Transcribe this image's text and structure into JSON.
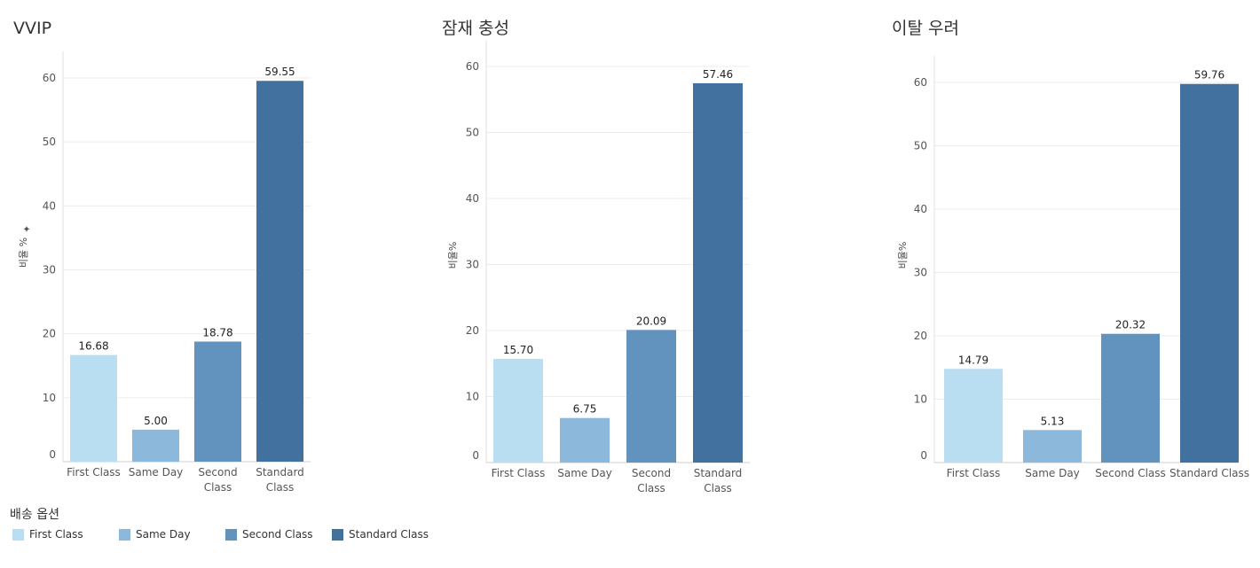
{
  "chart_data": [
    {
      "type": "bar",
      "title": "VVIP",
      "ylabel": "비율 %",
      "ylim": [
        0,
        60
      ],
      "yticks": [
        0,
        10,
        20,
        30,
        40,
        50,
        60
      ],
      "categories": [
        "First Class",
        "Same Day",
        "Second Class",
        "Standard Class"
      ],
      "values": [
        16.68,
        5.0,
        18.78,
        59.55
      ],
      "value_labels": [
        "16.68",
        "5.00",
        "18.78",
        "59.55"
      ]
    },
    {
      "type": "bar",
      "title": "잠재 충성",
      "ylabel": "비율%",
      "ylim": [
        0,
        60
      ],
      "yticks": [
        0,
        10,
        20,
        30,
        40,
        50,
        60
      ],
      "categories": [
        "First Class",
        "Same Day",
        "Second Class",
        "Standard Class"
      ],
      "values": [
        15.7,
        6.75,
        20.09,
        57.46
      ],
      "value_labels": [
        "15.70",
        "6.75",
        "20.09",
        "57.46"
      ]
    },
    {
      "type": "bar",
      "title": "이탈 우려",
      "ylabel": "비율%",
      "ylim": [
        0,
        60
      ],
      "yticks": [
        0,
        10,
        20,
        30,
        40,
        50,
        60
      ],
      "categories": [
        "First Class",
        "Same Day",
        "Second Class",
        "Standard Class"
      ],
      "values": [
        14.79,
        5.13,
        20.32,
        59.76
      ],
      "value_labels": [
        "14.79",
        "5.13",
        "20.32",
        "59.76"
      ]
    }
  ],
  "colors": {
    "First Class": "#b9ddf1",
    "Same Day": "#8cb8dc",
    "Second Class": "#6293bf",
    "Standard Class": "#42719f"
  },
  "legend": {
    "title": "배송 옵션",
    "items": [
      "First Class",
      "Same Day",
      "Second Class",
      "Standard Class"
    ]
  }
}
